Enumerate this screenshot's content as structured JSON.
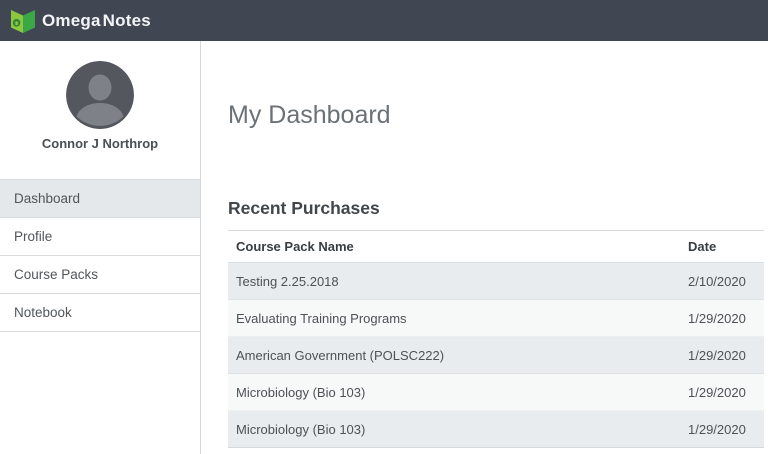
{
  "brand": {
    "part1": "Omega",
    "part2": "Notes"
  },
  "colors": {
    "header_bg": "#404753",
    "logo_green_light": "#8dc63f",
    "logo_green_dark": "#39a845",
    "active_item_bg": "#e5e8ea",
    "stripe_odd": "#e8ecee",
    "stripe_even": "#f7f8f8"
  },
  "sidebar": {
    "user_name": "Connor J Northrop",
    "items": [
      {
        "label": "Dashboard",
        "active": true
      },
      {
        "label": "Profile",
        "active": false
      },
      {
        "label": "Course Packs",
        "active": false
      },
      {
        "label": "Notebook",
        "active": false
      }
    ]
  },
  "main": {
    "page_title": "My Dashboard",
    "section_title": "Recent Purchases",
    "table": {
      "columns": [
        "Course Pack Name",
        "Date"
      ],
      "rows": [
        [
          "Testing 2.25.2018",
          "2/10/2020"
        ],
        [
          "Evaluating Training Programs",
          "1/29/2020"
        ],
        [
          "American Government (POLSC222)",
          "1/29/2020"
        ],
        [
          "Microbiology (Bio 103)",
          "1/29/2020"
        ],
        [
          "Microbiology (Bio 103)",
          "1/29/2020"
        ]
      ]
    }
  }
}
